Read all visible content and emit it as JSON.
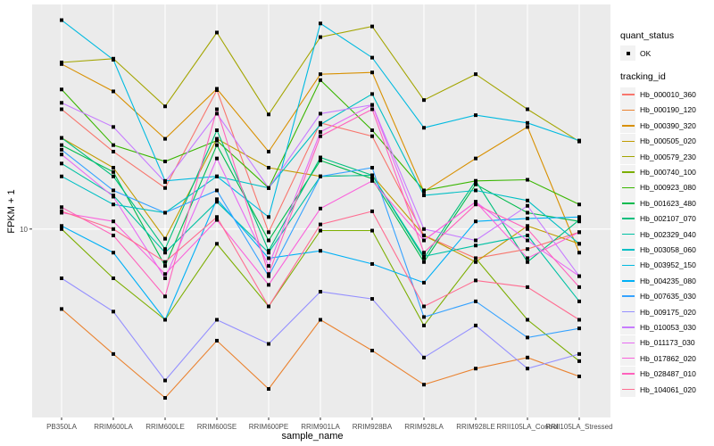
{
  "chart_data": {
    "type": "line",
    "title": "",
    "xlabel": "sample_name",
    "ylabel": "FPKM + 1",
    "y_scale": "log10",
    "ylim": [
      3.0,
      42
    ],
    "y_ticks": [
      10
    ],
    "y_tick_labels": [
      "10"
    ],
    "grid": true,
    "legend_position": "right",
    "categories": [
      "PB350LA",
      "RRIM600LA",
      "RRIM600LE",
      "RRIM600SE",
      "RRIM600PE",
      "RRIM901LA",
      "RRIM928BA",
      "RRIM928LA",
      "RRIM928LE",
      "RRII105LA_Control",
      "RRII105LA_Stressed"
    ],
    "legend_quant_title": "quant_status",
    "legend_quant_items": [
      "OK"
    ],
    "legend_series_title": "tracking_id",
    "series": [
      {
        "name": "Hb_000010_360",
        "color": "#F8766D",
        "values": [
          21.5,
          16.4,
          13.0,
          24.3,
          9.8,
          19.7,
          18.1,
          9.6,
          8.3,
          8.8,
          9.8
        ]
      },
      {
        "name": "Hb_000190_120",
        "color": "#EA8331",
        "values": [
          6.0,
          4.5,
          3.4,
          4.9,
          3.6,
          5.6,
          4.6,
          3.7,
          4.1,
          4.4,
          3.9
        ]
      },
      {
        "name": "Hb_000390_320",
        "color": "#D89000",
        "values": [
          28.7,
          24.1,
          17.8,
          24.5,
          16.4,
          26.9,
          27.2,
          12.7,
          15.7,
          19.2,
          8.6
        ]
      },
      {
        "name": "Hb_000505_020",
        "color": "#C09B00",
        "values": [
          17.9,
          14.8,
          9.4,
          17.8,
          14.8,
          14.0,
          14.1,
          9.6,
          8.1,
          10.2,
          9.1
        ]
      },
      {
        "name": "Hb_000579_230",
        "color": "#A3A500",
        "values": [
          29.0,
          29.7,
          21.9,
          35.1,
          20.8,
          34.1,
          36.5,
          22.8,
          26.9,
          21.5,
          17.5
        ]
      },
      {
        "name": "Hb_000740_100",
        "color": "#7CAE00",
        "values": [
          10.0,
          7.3,
          5.6,
          9.1,
          6.1,
          9.9,
          9.9,
          5.4,
          8.3,
          5.6,
          4.3
        ]
      },
      {
        "name": "Hb_000923_080",
        "color": "#39B600",
        "values": [
          24.4,
          17.1,
          15.4,
          17.6,
          13.0,
          25.9,
          18.8,
          12.8,
          13.6,
          13.7,
          11.7
        ]
      },
      {
        "name": "Hb_001623_480",
        "color": "#00BB4E",
        "values": [
          17.1,
          14.4,
          7.9,
          17.1,
          9.3,
          15.5,
          13.8,
          8.1,
          13.3,
          11.1,
          10.5
        ]
      },
      {
        "name": "Hb_002107_070",
        "color": "#00BF7D",
        "values": [
          17.9,
          14.0,
          8.8,
          18.8,
          8.7,
          15.8,
          14.1,
          8.3,
          13.6,
          8.1,
          10.6
        ]
      },
      {
        "name": "Hb_002329_040",
        "color": "#00C1A3",
        "values": [
          15.2,
          12.4,
          8.6,
          11.9,
          8.6,
          14.0,
          14.1,
          8.4,
          9.0,
          9.6,
          6.3
        ]
      },
      {
        "name": "Hb_003058_060",
        "color": "#00BFC4",
        "values": [
          14.0,
          11.7,
          11.1,
          14.0,
          13.0,
          19.5,
          23.7,
          12.4,
          12.8,
          12.0,
          9.1
        ]
      },
      {
        "name": "Hb_003952_150",
        "color": "#00BAE0",
        "values": [
          38.0,
          29.5,
          13.6,
          14.0,
          10.8,
          37.2,
          29.9,
          19.1,
          20.7,
          19.7,
          17.6
        ]
      },
      {
        "name": "Hb_004235_080",
        "color": "#00B0F6",
        "values": [
          10.2,
          8.6,
          5.6,
          12.1,
          8.3,
          8.7,
          8.0,
          7.1,
          10.5,
          10.7,
          10.8
        ]
      },
      {
        "name": "Hb_007635_030",
        "color": "#35A2FF",
        "values": [
          16.6,
          12.8,
          11.1,
          12.8,
          7.4,
          14.0,
          14.8,
          5.7,
          6.3,
          5.0,
          5.3
        ]
      },
      {
        "name": "Hb_009175_020",
        "color": "#9590FF",
        "values": [
          7.3,
          5.9,
          3.8,
          5.6,
          4.8,
          6.7,
          6.4,
          4.4,
          5.4,
          4.1,
          4.5
        ]
      },
      {
        "name": "Hb_010053_030",
        "color": "#C77CFF",
        "values": [
          22.4,
          19.2,
          13.5,
          20.9,
          13.0,
          20.9,
          22.1,
          10.0,
          9.3,
          11.6,
          7.4
        ]
      },
      {
        "name": "Hb_011173_030",
        "color": "#E76BF3",
        "values": [
          16.1,
          12.3,
          7.3,
          15.7,
          7.9,
          18.6,
          22.1,
          9.3,
          11.9,
          9.3,
          7.4
        ]
      },
      {
        "name": "Hb_017862_020",
        "color": "#FA62DB",
        "values": [
          11.1,
          10.5,
          7.5,
          10.6,
          7.0,
          11.4,
          13.6,
          9.3,
          11.9,
          8.3,
          9.8
        ]
      },
      {
        "name": "Hb_028487_010",
        "color": "#FF62BC",
        "values": [
          11.5,
          9.6,
          6.5,
          21.5,
          7.5,
          18.1,
          21.5,
          8.6,
          11.7,
          10.0,
          6.9
        ]
      },
      {
        "name": "Hb_104061_020",
        "color": "#FF6C91",
        "values": [
          11.2,
          10.0,
          8.1,
          10.8,
          6.1,
          10.3,
          11.2,
          6.1,
          7.2,
          6.9,
          5.6
        ]
      }
    ]
  }
}
